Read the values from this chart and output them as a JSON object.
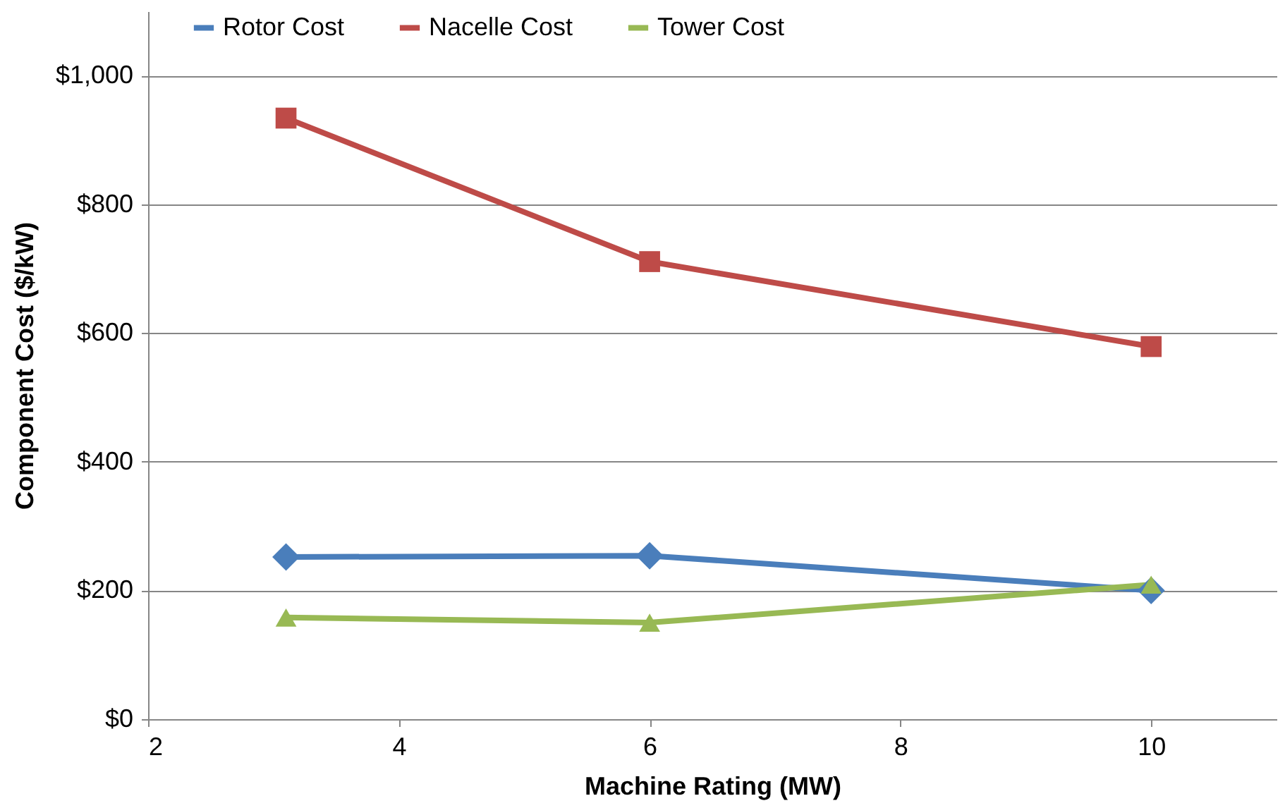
{
  "chart_data": {
    "type": "line",
    "xlabel": "Machine Rating (MW)",
    "ylabel": "Component Cost ($/kW)",
    "x": [
      3.1,
      6,
      10
    ],
    "series": [
      {
        "name": "Rotor Cost",
        "color": "#4a7ebb",
        "marker": "diamond",
        "values": [
          252,
          254,
          200
        ]
      },
      {
        "name": "Nacelle Cost",
        "color": "#be4b48",
        "marker": "square",
        "values": [
          934,
          711,
          579
        ]
      },
      {
        "name": "Tower Cost",
        "color": "#98b954",
        "marker": "triangle",
        "values": [
          158,
          150,
          209
        ]
      }
    ],
    "xlim": [
      2,
      11
    ],
    "xticks": [
      2,
      4,
      6,
      8,
      10
    ],
    "ylim": [
      0,
      1100
    ],
    "yticks": [
      {
        "value": 0,
        "label": "$0"
      },
      {
        "value": 200,
        "label": "$200"
      },
      {
        "value": 400,
        "label": "$400"
      },
      {
        "value": 600,
        "label": "$600"
      },
      {
        "value": 800,
        "label": "$800"
      },
      {
        "value": 1000,
        "label": "$1,000"
      }
    ],
    "grid": "y",
    "legend": "top",
    "line_style": "solid"
  }
}
